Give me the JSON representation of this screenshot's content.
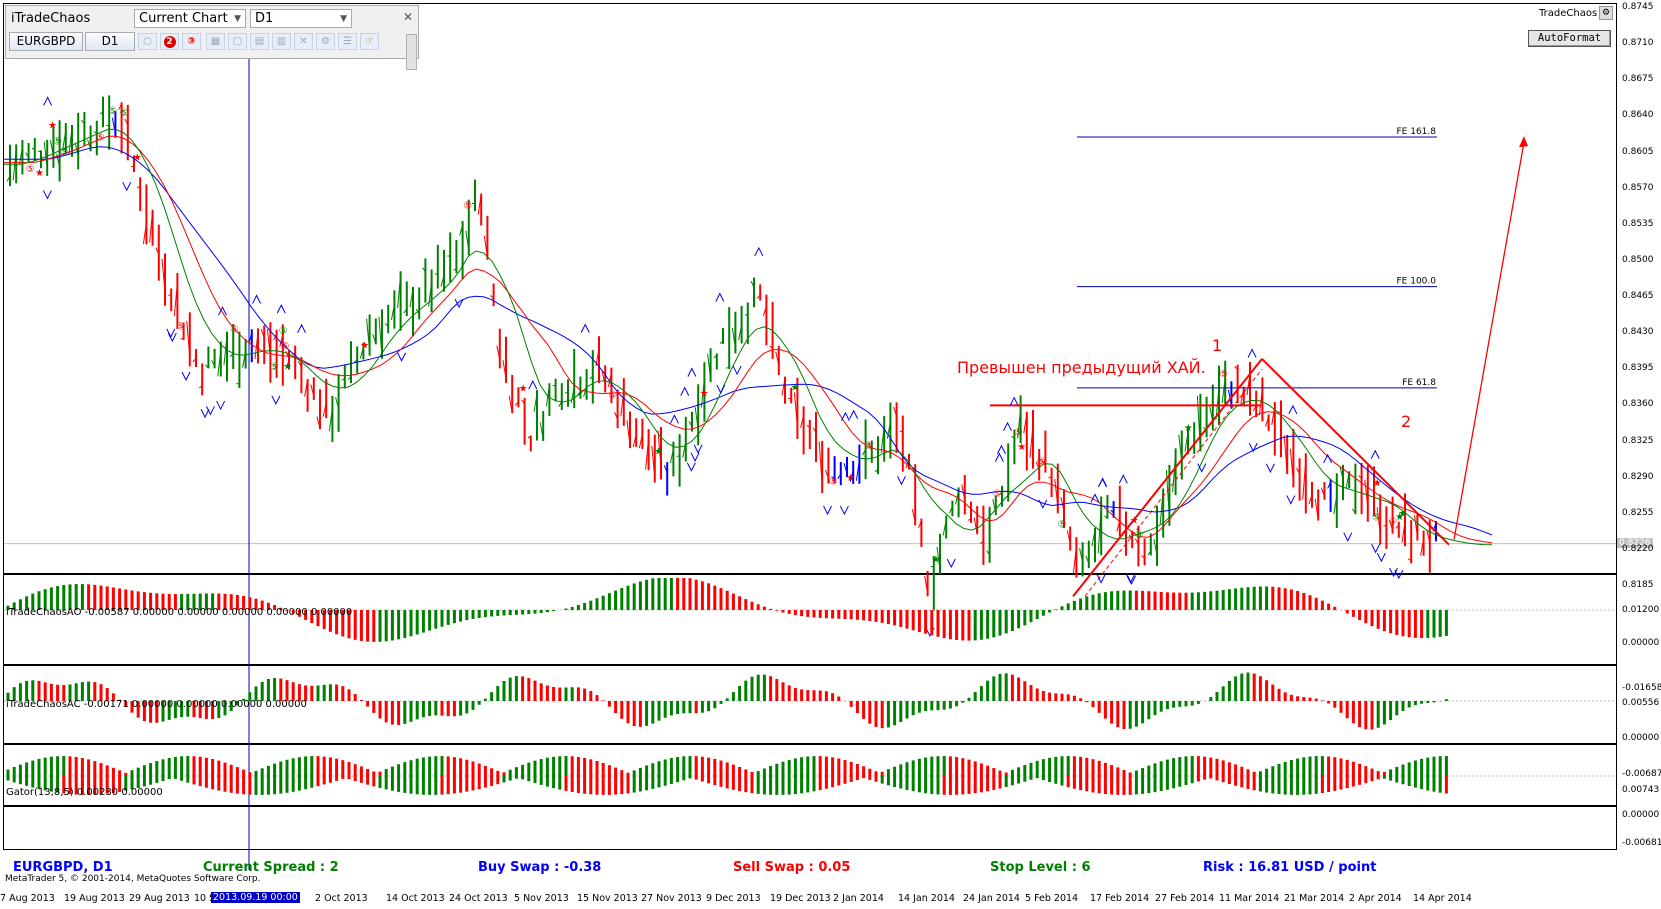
{
  "toolbar": {
    "title": "iTradeChaos",
    "chart_select": "Current Chart",
    "tf_select": "D1",
    "symbol_button": "EURGBPD",
    "tf_button": "D1",
    "icons": [
      "circle-1-icon",
      "circle-2-icon",
      "circle-3-icon",
      "grid-icon",
      "square-icon",
      "bars-icon",
      "chart-icon",
      "cross-icon",
      "gear-icon",
      "list-icon",
      "hand-icon"
    ],
    "close_icon": "close-icon"
  },
  "top_right": {
    "tradechaos_label": "TradeChaos",
    "autoformat_button": "AutoFormat"
  },
  "main_chart": {
    "price_labels": [
      "0.8745",
      "0.8710",
      "0.8675",
      "0.8640",
      "0.8605",
      "0.8570",
      "0.8535",
      "0.8500",
      "0.8465",
      "0.8430",
      "0.8395",
      "0.8360",
      "0.8325",
      "0.8290",
      "0.8255",
      "0.8226",
      "0.8220",
      "0.8185"
    ],
    "current_price": "0.8226",
    "fe_levels": [
      {
        "label": "FE 161.8",
        "price": 0.862
      },
      {
        "label": "FE 100.0",
        "price": 0.8475
      },
      {
        "label": "FE 61.8",
        "price": 0.8377
      }
    ],
    "annotation_text": "Превышен предыдущий ХАЙ.",
    "wave_labels": [
      "1",
      "2"
    ],
    "price_high": 0.8745,
    "price_low": 0.8185
  },
  "indicators": {
    "ao": {
      "label": "iTradeChaosAO -0.00587 0.00000 0.00000 0.00000 0.00000 0.00000",
      "levels": [
        "0.01200",
        "0.00000",
        "-0.01658"
      ]
    },
    "ac": {
      "label": "iTradeChaosAC -0.00171 0.00000 0.00000 0.00000 0.00000",
      "levels": [
        "0.00556",
        "0.00000",
        "-0.00687"
      ]
    },
    "gator": {
      "label": "Gator(13,8,5) 0.00230 0.00000",
      "levels": [
        "0.00743",
        "0.00000",
        "-0.00681"
      ]
    }
  },
  "status_bar": {
    "symbol": "EURGBPD, D1",
    "spread_label": "Current Spread :",
    "spread_value": "2",
    "buy_swap_label": "Buy Swap :",
    "buy_swap_value": "-0.38",
    "sell_swap_label": "Sell Swap :",
    "sell_swap_value": "0.05",
    "stop_level_label": "Stop Level :",
    "stop_level_value": "6",
    "risk_label": "Risk :",
    "risk_value": "16.81 USD / point",
    "copyright": "MetaTrader 5, © 2001-2014, MetaQuotes Software Corp."
  },
  "x_axis": {
    "labels": [
      "7 Aug 2013",
      "19 Aug 2013",
      "29 Aug 2013",
      "10 Sep 2013",
      "2 Oct 2013",
      "14 Oct 2013",
      "24 Oct 2013",
      "5 Nov 2013",
      "15 Nov 2013",
      "27 Nov 2013",
      "9 Dec 2013",
      "19 Dec 2013",
      "2 Jan 2014",
      "14 Jan 2014",
      "24 Jan 2014",
      "5 Feb 2014",
      "17 Feb 2014",
      "27 Feb 2014",
      "11 Mar 2014",
      "21 Mar 2014",
      "2 Apr 2014",
      "14 Apr 2014"
    ],
    "crosshair_label": "2013.09.19 00:00"
  },
  "colors": {
    "bull": "#008000",
    "bear": "#ff0000",
    "neutral": "#0000ff",
    "alligator_jaw": "#0000ff",
    "alligator_teeth": "#ff0000",
    "alligator_lips": "#008000",
    "status_symbol": "#0000ff",
    "status_green": "#008000",
    "status_red": "#ff0000"
  }
}
